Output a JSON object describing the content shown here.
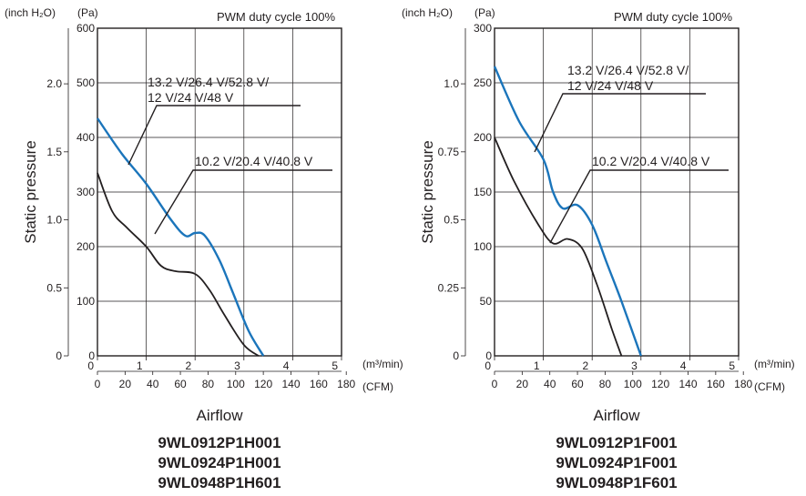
{
  "chart_data": [
    {
      "type": "line",
      "title": "PWM duty cycle 100%",
      "ylabel": "Static pressure",
      "xlabel": "Airflow",
      "y_unit_pa": "(Pa)",
      "y_unit_inch": "(inch H₂O)",
      "x_unit_m3": "(m³/min)",
      "x_unit_cfm": "(CFM)",
      "xlim_m3min": [
        0,
        5
      ],
      "ylim_pa": [
        0,
        600
      ],
      "x_ticks_m3min": [
        "0",
        "1",
        "2",
        "3",
        "4",
        "5"
      ],
      "x_ticks_cfm": [
        "0",
        "20",
        "40",
        "60",
        "80",
        "100",
        "120",
        "140",
        "160",
        "180"
      ],
      "y_ticks_pa": [
        "0",
        "100",
        "200",
        "300",
        "400",
        "500",
        "600"
      ],
      "y_ticks_inch": [
        "0",
        "0.5",
        "1.0",
        "1.5",
        "2.0"
      ],
      "grid": true,
      "series": [
        {
          "name": "13.2 V/26.4 V/52.8 V/ 12 V/24 V/48 V",
          "label_lines": [
            "13.2 V/26.4 V/52.8 V/",
            "12 V/24 V/48 V"
          ],
          "color": "#1b75bb",
          "x": [
            0,
            0.5,
            1.0,
            1.5,
            1.8,
            2.0,
            2.2,
            2.5,
            2.8,
            3.1,
            3.4
          ],
          "y": [
            435,
            370,
            315,
            250,
            220,
            225,
            220,
            175,
            110,
            45,
            0
          ]
        },
        {
          "name": "10.2 V/20.4 V/40.8 V",
          "label_lines": [
            "10.2 V/20.4 V/40.8 V"
          ],
          "color": "#231f20",
          "x": [
            0,
            0.3,
            0.6,
            1.0,
            1.3,
            1.6,
            2.0,
            2.3,
            2.6,
            3.0,
            3.3
          ],
          "y": [
            335,
            265,
            235,
            200,
            165,
            155,
            150,
            120,
            75,
            20,
            0
          ]
        }
      ],
      "models": [
        "9WL0912P1H001",
        "9WL0924P1H001",
        "9WL0948P1H601"
      ]
    },
    {
      "type": "line",
      "title": "PWM duty cycle 100%",
      "ylabel": "Static pressure",
      "xlabel": "Airflow",
      "y_unit_pa": "(Pa)",
      "y_unit_inch": "(inch H₂O)",
      "x_unit_m3": "(m³/min)",
      "x_unit_cfm": "(CFM)",
      "xlim_m3min": [
        0,
        5
      ],
      "ylim_pa": [
        0,
        300
      ],
      "x_ticks_m3min": [
        "0",
        "1",
        "2",
        "3",
        "4",
        "5"
      ],
      "x_ticks_cfm": [
        "0",
        "20",
        "40",
        "60",
        "80",
        "100",
        "120",
        "140",
        "160",
        "180"
      ],
      "y_ticks_pa": [
        "0",
        "50",
        "100",
        "150",
        "200",
        "250",
        "300"
      ],
      "y_ticks_inch": [
        "0",
        "0.25",
        "0.5",
        "0.75",
        "1.0"
      ],
      "grid": true,
      "series": [
        {
          "name": "13.2 V/26.4 V/52.8 V/ 12 V/24 V/48 V",
          "label_lines": [
            "13.2 V/26.4 V/52.8 V/",
            "12 V/24 V/48 V"
          ],
          "color": "#1b75bb",
          "x": [
            0,
            0.5,
            1.0,
            1.2,
            1.4,
            1.7,
            2.0,
            2.3,
            2.6,
            3.0
          ],
          "y": [
            265,
            215,
            180,
            150,
            135,
            138,
            120,
            85,
            50,
            0
          ]
        },
        {
          "name": "10.2 V/20.4 V/40.8 V",
          "label_lines": [
            "10.2 V/20.4 V/40.8 V"
          ],
          "color": "#231f20",
          "x": [
            0,
            0.4,
            0.9,
            1.2,
            1.5,
            1.8,
            2.1,
            2.4,
            2.6
          ],
          "y": [
            200,
            160,
            120,
            103,
            107,
            98,
            65,
            25,
            0
          ]
        }
      ],
      "models": [
        "9WL0912P1F001",
        "9WL0924P1F001",
        "9WL0948P1F601"
      ]
    }
  ]
}
